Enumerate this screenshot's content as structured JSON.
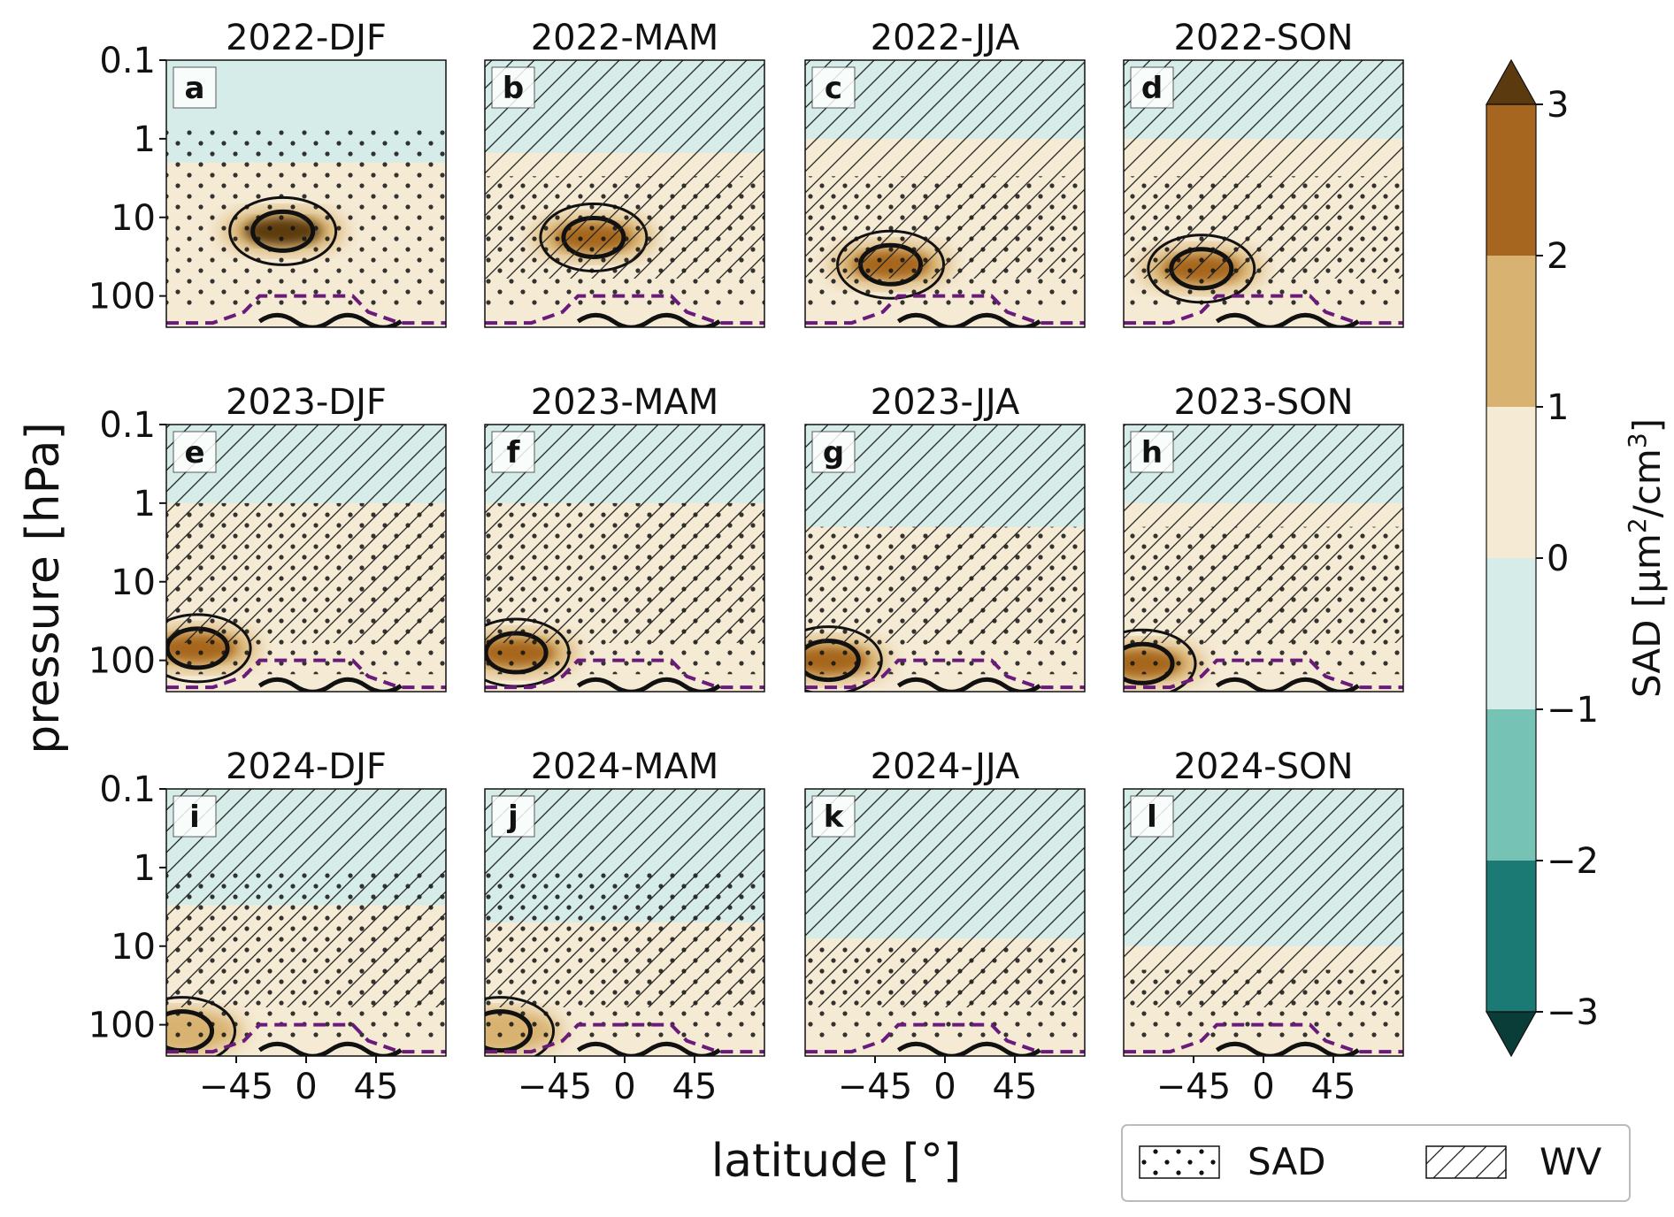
{
  "chart_data": {
    "type": "heatmap",
    "layout": "3x4 panel grid of latitude-pressure anomaly cross sections",
    "xlabel": "latitude [°]",
    "ylabel": "pressure [hPa]",
    "x_ticks": [
      -45,
      0,
      45
    ],
    "x_tick_labels": [
      "−45",
      "0",
      "45"
    ],
    "xlim": [
      -90,
      90
    ],
    "y_ticks": [
      0.1,
      1,
      10,
      100
    ],
    "y_tick_labels": [
      "0.1",
      "1",
      "10",
      "100"
    ],
    "ylim": [
      250,
      0.1
    ],
    "y_scale": "log",
    "panels": [
      {
        "letter": "a",
        "title": "2022-DJF",
        "sad_fill": "#f5ead4",
        "upper_fill": "#d6ece8",
        "upper_from": 0.1,
        "upper_to": 2,
        "core": [
          {
            "lat": -15,
            "p": 15,
            "level": 3
          }
        ],
        "hatch_from": null,
        "dots_from": 0.7
      },
      {
        "letter": "b",
        "title": "2022-MAM",
        "sad_fill": "#f5ead4",
        "upper_fill": "#d6ece8",
        "upper_from": 0.1,
        "upper_to": 1.5,
        "core": [
          {
            "lat": -20,
            "p": 18,
            "level": 2
          }
        ],
        "hatch_from": 0.1,
        "dots_from": 3
      },
      {
        "letter": "c",
        "title": "2022-JJA",
        "sad_fill": "#f5ead4",
        "upper_fill": "#d6ece8",
        "upper_from": 0.1,
        "upper_to": 1,
        "core": [
          {
            "lat": -35,
            "p": 40,
            "level": 2
          }
        ],
        "hatch_from": 0.1,
        "dots_from": 3
      },
      {
        "letter": "d",
        "title": "2022-SON",
        "sad_fill": "#f5ead4",
        "upper_fill": "#d6ece8",
        "upper_from": 0.1,
        "upper_to": 1,
        "core": [
          {
            "lat": -40,
            "p": 45,
            "level": 2
          }
        ],
        "hatch_from": 0.1,
        "dots_from": 3
      },
      {
        "letter": "e",
        "title": "2023-DJF",
        "sad_fill": "#f5ead4",
        "upper_fill": "#d6ece8",
        "upper_from": 0.1,
        "upper_to": 1,
        "core": [
          {
            "lat": -70,
            "p": 70,
            "level": 2
          }
        ],
        "hatch_from": 0.1,
        "dots_from": 1
      },
      {
        "letter": "f",
        "title": "2023-MAM",
        "sad_fill": "#f5ead4",
        "upper_fill": "#d6ece8",
        "upper_from": 0.1,
        "upper_to": 1,
        "core": [
          {
            "lat": -70,
            "p": 80,
            "level": 2
          }
        ],
        "hatch_from": 0.1,
        "dots_from": 1
      },
      {
        "letter": "g",
        "title": "2023-JJA",
        "sad_fill": "#f5ead4",
        "upper_fill": "#d6ece8",
        "upper_from": 0.1,
        "upper_to": 2,
        "core": [
          {
            "lat": -75,
            "p": 100,
            "level": 2
          }
        ],
        "hatch_from": 0.1,
        "dots_from": 2
      },
      {
        "letter": "h",
        "title": "2023-SON",
        "sad_fill": "#f5ead4",
        "upper_fill": "#d6ece8",
        "upper_from": 0.1,
        "upper_to": 1,
        "core": [
          {
            "lat": -78,
            "p": 110,
            "level": 2
          }
        ],
        "hatch_from": 0.1,
        "dots_from": 2
      },
      {
        "letter": "i",
        "title": "2024-DJF",
        "sad_fill": "#f5ead4",
        "upper_fill": "#d6ece8",
        "upper_from": 0.1,
        "upper_to": 3,
        "core": [
          {
            "lat": -80,
            "p": 120,
            "level": 1
          }
        ],
        "hatch_from": 0.1,
        "dots_from": 1
      },
      {
        "letter": "j",
        "title": "2024-MAM",
        "sad_fill": "#f5ead4",
        "upper_fill": "#d6ece8",
        "upper_from": 0.1,
        "upper_to": 5,
        "core": [
          {
            "lat": -80,
            "p": 120,
            "level": 1
          }
        ],
        "hatch_from": 0.1,
        "dots_from": 1
      },
      {
        "letter": "k",
        "title": "2024-JJA",
        "sad_fill": "#f5ead4",
        "upper_fill": "#d6ece8",
        "upper_from": 0.1,
        "upper_to": 8,
        "core": [],
        "hatch_from": 0.1,
        "dots_from": 10
      },
      {
        "letter": "l",
        "title": "2024-SON",
        "sad_fill": "#f5ead4",
        "upper_fill": "#d6ece8",
        "upper_from": 0.1,
        "upper_to": 10,
        "core": [],
        "hatch_from": 0.1,
        "dots_from": 20
      }
    ],
    "tropopause_line": {
      "color": "#6a1a7a",
      "style": "dashed"
    },
    "colorbar": {
      "label": "SAD [µm²/cm³]",
      "label_parts": [
        "SAD [µm",
        "2",
        "/cm",
        "3",
        "]"
      ],
      "levels": [
        -3,
        -2,
        -1,
        0,
        1,
        2,
        3
      ],
      "tick_labels": [
        "−3",
        "−2",
        "−1",
        "0",
        "1",
        "2",
        "3"
      ],
      "colors": [
        "#1b7a73",
        "#76c2b5",
        "#d6ece8",
        "#f5ead4",
        "#d8b271",
        "#a6661f"
      ],
      "extend_min_color": "#0b3d38",
      "extend_max_color": "#5c3a0f"
    },
    "legend": {
      "position": "bottom-right",
      "items": [
        {
          "label": "SAD",
          "pattern": "dots"
        },
        {
          "label": "WV",
          "pattern": "hatch"
        }
      ]
    }
  }
}
